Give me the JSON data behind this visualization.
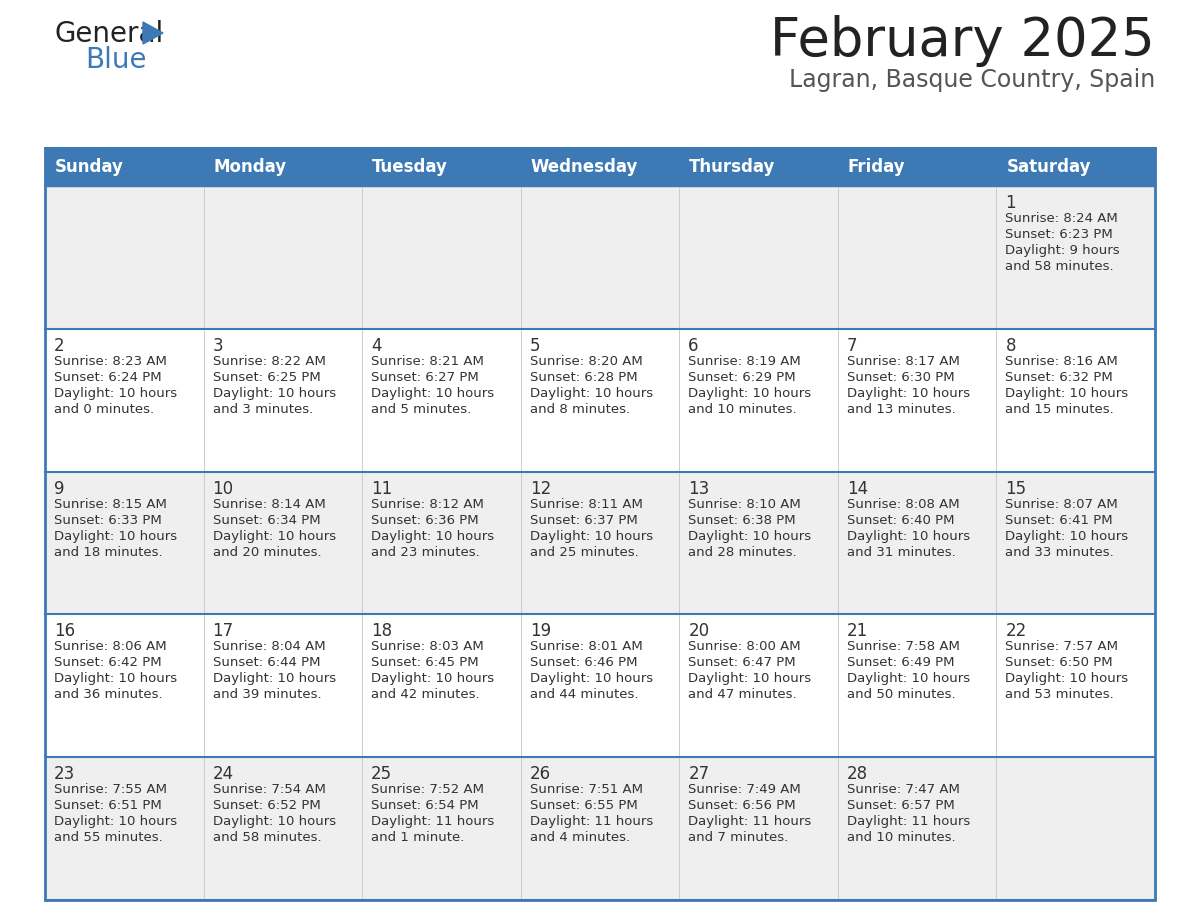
{
  "title": "February 2025",
  "subtitle": "Lagran, Basque Country, Spain",
  "header_bg": "#3d7ab5",
  "header_text_color": "#ffffff",
  "row_bg_odd": "#efefef",
  "row_bg_even": "#ffffff",
  "separator_color": "#3d7ab5",
  "text_color": "#333333",
  "day_headers": [
    "Sunday",
    "Monday",
    "Tuesday",
    "Wednesday",
    "Thursday",
    "Friday",
    "Saturday"
  ],
  "days": [
    {
      "day": 1,
      "col": 6,
      "row": 0,
      "sunrise": "8:24 AM",
      "sunset": "6:23 PM",
      "daylight_h": "9 hours",
      "daylight_m": "and 58 minutes."
    },
    {
      "day": 2,
      "col": 0,
      "row": 1,
      "sunrise": "8:23 AM",
      "sunset": "6:24 PM",
      "daylight_h": "10 hours",
      "daylight_m": "and 0 minutes."
    },
    {
      "day": 3,
      "col": 1,
      "row": 1,
      "sunrise": "8:22 AM",
      "sunset": "6:25 PM",
      "daylight_h": "10 hours",
      "daylight_m": "and 3 minutes."
    },
    {
      "day": 4,
      "col": 2,
      "row": 1,
      "sunrise": "8:21 AM",
      "sunset": "6:27 PM",
      "daylight_h": "10 hours",
      "daylight_m": "and 5 minutes."
    },
    {
      "day": 5,
      "col": 3,
      "row": 1,
      "sunrise": "8:20 AM",
      "sunset": "6:28 PM",
      "daylight_h": "10 hours",
      "daylight_m": "and 8 minutes."
    },
    {
      "day": 6,
      "col": 4,
      "row": 1,
      "sunrise": "8:19 AM",
      "sunset": "6:29 PM",
      "daylight_h": "10 hours",
      "daylight_m": "and 10 minutes."
    },
    {
      "day": 7,
      "col": 5,
      "row": 1,
      "sunrise": "8:17 AM",
      "sunset": "6:30 PM",
      "daylight_h": "10 hours",
      "daylight_m": "and 13 minutes."
    },
    {
      "day": 8,
      "col": 6,
      "row": 1,
      "sunrise": "8:16 AM",
      "sunset": "6:32 PM",
      "daylight_h": "10 hours",
      "daylight_m": "and 15 minutes."
    },
    {
      "day": 9,
      "col": 0,
      "row": 2,
      "sunrise": "8:15 AM",
      "sunset": "6:33 PM",
      "daylight_h": "10 hours",
      "daylight_m": "and 18 minutes."
    },
    {
      "day": 10,
      "col": 1,
      "row": 2,
      "sunrise": "8:14 AM",
      "sunset": "6:34 PM",
      "daylight_h": "10 hours",
      "daylight_m": "and 20 minutes."
    },
    {
      "day": 11,
      "col": 2,
      "row": 2,
      "sunrise": "8:12 AM",
      "sunset": "6:36 PM",
      "daylight_h": "10 hours",
      "daylight_m": "and 23 minutes."
    },
    {
      "day": 12,
      "col": 3,
      "row": 2,
      "sunrise": "8:11 AM",
      "sunset": "6:37 PM",
      "daylight_h": "10 hours",
      "daylight_m": "and 25 minutes."
    },
    {
      "day": 13,
      "col": 4,
      "row": 2,
      "sunrise": "8:10 AM",
      "sunset": "6:38 PM",
      "daylight_h": "10 hours",
      "daylight_m": "and 28 minutes."
    },
    {
      "day": 14,
      "col": 5,
      "row": 2,
      "sunrise": "8:08 AM",
      "sunset": "6:40 PM",
      "daylight_h": "10 hours",
      "daylight_m": "and 31 minutes."
    },
    {
      "day": 15,
      "col": 6,
      "row": 2,
      "sunrise": "8:07 AM",
      "sunset": "6:41 PM",
      "daylight_h": "10 hours",
      "daylight_m": "and 33 minutes."
    },
    {
      "day": 16,
      "col": 0,
      "row": 3,
      "sunrise": "8:06 AM",
      "sunset": "6:42 PM",
      "daylight_h": "10 hours",
      "daylight_m": "and 36 minutes."
    },
    {
      "day": 17,
      "col": 1,
      "row": 3,
      "sunrise": "8:04 AM",
      "sunset": "6:44 PM",
      "daylight_h": "10 hours",
      "daylight_m": "and 39 minutes."
    },
    {
      "day": 18,
      "col": 2,
      "row": 3,
      "sunrise": "8:03 AM",
      "sunset": "6:45 PM",
      "daylight_h": "10 hours",
      "daylight_m": "and 42 minutes."
    },
    {
      "day": 19,
      "col": 3,
      "row": 3,
      "sunrise": "8:01 AM",
      "sunset": "6:46 PM",
      "daylight_h": "10 hours",
      "daylight_m": "and 44 minutes."
    },
    {
      "day": 20,
      "col": 4,
      "row": 3,
      "sunrise": "8:00 AM",
      "sunset": "6:47 PM",
      "daylight_h": "10 hours",
      "daylight_m": "and 47 minutes."
    },
    {
      "day": 21,
      "col": 5,
      "row": 3,
      "sunrise": "7:58 AM",
      "sunset": "6:49 PM",
      "daylight_h": "10 hours",
      "daylight_m": "and 50 minutes."
    },
    {
      "day": 22,
      "col": 6,
      "row": 3,
      "sunrise": "7:57 AM",
      "sunset": "6:50 PM",
      "daylight_h": "10 hours",
      "daylight_m": "and 53 minutes."
    },
    {
      "day": 23,
      "col": 0,
      "row": 4,
      "sunrise": "7:55 AM",
      "sunset": "6:51 PM",
      "daylight_h": "10 hours",
      "daylight_m": "and 55 minutes."
    },
    {
      "day": 24,
      "col": 1,
      "row": 4,
      "sunrise": "7:54 AM",
      "sunset": "6:52 PM",
      "daylight_h": "10 hours",
      "daylight_m": "and 58 minutes."
    },
    {
      "day": 25,
      "col": 2,
      "row": 4,
      "sunrise": "7:52 AM",
      "sunset": "6:54 PM",
      "daylight_h": "11 hours",
      "daylight_m": "and 1 minute."
    },
    {
      "day": 26,
      "col": 3,
      "row": 4,
      "sunrise": "7:51 AM",
      "sunset": "6:55 PM",
      "daylight_h": "11 hours",
      "daylight_m": "and 4 minutes."
    },
    {
      "day": 27,
      "col": 4,
      "row": 4,
      "sunrise": "7:49 AM",
      "sunset": "6:56 PM",
      "daylight_h": "11 hours",
      "daylight_m": "and 7 minutes."
    },
    {
      "day": 28,
      "col": 5,
      "row": 4,
      "sunrise": "7:47 AM",
      "sunset": "6:57 PM",
      "daylight_h": "11 hours",
      "daylight_m": "and 10 minutes."
    }
  ]
}
